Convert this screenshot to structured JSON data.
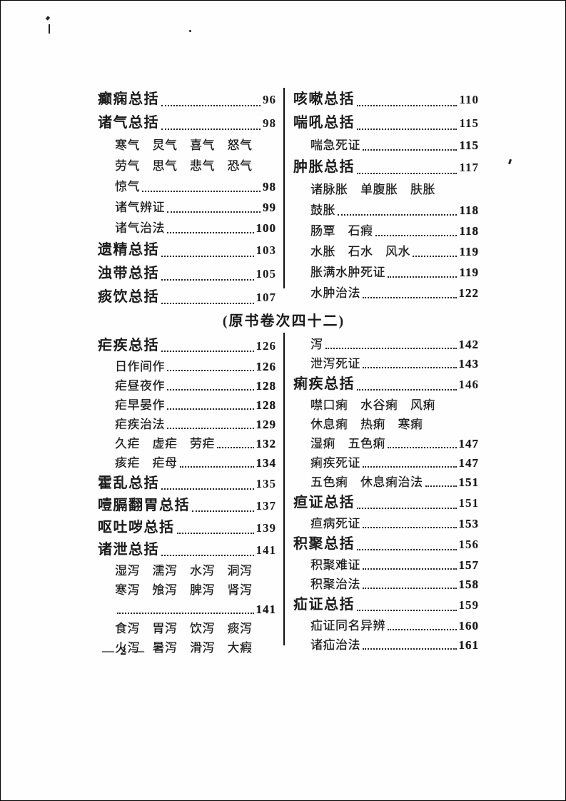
{
  "page": {
    "section_header": "(原书卷次四十二)",
    "footer": "— 2 —"
  },
  "toc": {
    "top_left": [
      {
        "label": "癫痫总括",
        "page": "96",
        "level": "main",
        "dots": true
      },
      {
        "label": "诸气总括",
        "page": "98",
        "level": "main",
        "dots": true
      },
      {
        "label": "寒气　炅气　喜气　怒气",
        "page": null,
        "level": "sub",
        "dots": false
      },
      {
        "label": "劳气　思气　悲气　恐气",
        "page": null,
        "level": "sub",
        "dots": false
      },
      {
        "label": "惊气",
        "page": "98",
        "level": "sub",
        "dots": true
      },
      {
        "label": "诸气辨证",
        "page": "99",
        "level": "sub",
        "dots": true
      },
      {
        "label": "诸气治法",
        "page": "100",
        "level": "sub",
        "dots": true
      },
      {
        "label": "遗精总括",
        "page": "103",
        "level": "main",
        "dots": true
      },
      {
        "label": "浊带总括",
        "page": "105",
        "level": "main",
        "dots": true
      },
      {
        "label": "痰饮总括",
        "page": "107",
        "level": "main",
        "dots": true
      }
    ],
    "top_right": [
      {
        "label": "咳嗽总括",
        "page": "110",
        "level": "main",
        "dots": true
      },
      {
        "label": "喘吼总括",
        "page": "115",
        "level": "main",
        "dots": true
      },
      {
        "label": "喘急死证",
        "page": "115",
        "level": "sub",
        "dots": true
      },
      {
        "label": "肿胀总括",
        "page": "117",
        "level": "main",
        "dots": true
      },
      {
        "label": "诸脉胀　单腹胀　肤胀",
        "page": null,
        "level": "sub",
        "dots": false
      },
      {
        "label": "鼓胀",
        "page": "118",
        "level": "sub",
        "dots": true
      },
      {
        "label": "肠覃　石瘕",
        "page": "118",
        "level": "sub",
        "dots": true
      },
      {
        "label": "水胀　石水　风水",
        "page": "119",
        "level": "sub",
        "dots": true
      },
      {
        "label": "胀满水肿死证",
        "page": "119",
        "level": "sub",
        "dots": true
      },
      {
        "label": "水肿治法",
        "page": "122",
        "level": "sub",
        "dots": true
      }
    ],
    "bottom_left": [
      {
        "label": "疟疾总括",
        "page": "126",
        "level": "main",
        "dots": true
      },
      {
        "label": "日作间作",
        "page": "126",
        "level": "sub",
        "dots": true
      },
      {
        "label": "疟昼夜作",
        "page": "128",
        "level": "sub",
        "dots": true
      },
      {
        "label": "疟早晏作",
        "page": "128",
        "level": "sub",
        "dots": true
      },
      {
        "label": "疟疾治法",
        "page": "129",
        "level": "sub",
        "dots": true
      },
      {
        "label": "久疟　虚疟　劳疟",
        "page": "132",
        "level": "sub",
        "dots": true
      },
      {
        "label": "痎疟　疟母",
        "page": "134",
        "level": "sub",
        "dots": true
      },
      {
        "label": "霍乱总括",
        "page": "135",
        "level": "main",
        "dots": true
      },
      {
        "label": "噎膈翻胃总括",
        "page": "137",
        "level": "main",
        "dots": true
      },
      {
        "label": "呕吐哕总括",
        "page": "139",
        "level": "main",
        "dots": true
      },
      {
        "label": "诸泄总括",
        "page": "141",
        "level": "main",
        "dots": true
      },
      {
        "label": "湿泻　濡泻　水泻　洞泻",
        "page": null,
        "level": "sub",
        "dots": false
      },
      {
        "label": "寒泻　飧泻　脾泻　肾泻",
        "page": null,
        "level": "sub",
        "dots": false
      },
      {
        "label": "",
        "page": "141",
        "level": "sub",
        "dots": true
      },
      {
        "label": "食泻　胃泻　饮泻　痰泻",
        "page": null,
        "level": "sub",
        "dots": false
      },
      {
        "label": "火泻　暑泻　滑泻　大瘕",
        "page": null,
        "level": "sub",
        "dots": false
      }
    ],
    "bottom_right": [
      {
        "label": "泻",
        "page": "142",
        "level": "sub",
        "dots": true
      },
      {
        "label": "泄泻死证",
        "page": "143",
        "level": "sub",
        "dots": true
      },
      {
        "label": "痢疾总括",
        "page": "146",
        "level": "main",
        "dots": true
      },
      {
        "label": "噤口痢　水谷痢　风痢",
        "page": null,
        "level": "sub",
        "dots": false
      },
      {
        "label": "休息痢　热痢　寒痢",
        "page": null,
        "level": "sub",
        "dots": false
      },
      {
        "label": "湿痢　五色痢",
        "page": "147",
        "level": "sub",
        "dots": true
      },
      {
        "label": "痢疾死证",
        "page": "147",
        "level": "sub",
        "dots": true
      },
      {
        "label": "五色痢　休息痢治法",
        "page": "151",
        "level": "sub",
        "dots": true
      },
      {
        "label": "疸证总括",
        "page": "151",
        "level": "main",
        "dots": true
      },
      {
        "label": "疸病死证",
        "page": "153",
        "level": "sub",
        "dots": true
      },
      {
        "label": "积聚总括",
        "page": "156",
        "level": "main",
        "dots": true
      },
      {
        "label": "积聚难证",
        "page": "157",
        "level": "sub",
        "dots": true
      },
      {
        "label": "积聚治法",
        "page": "158",
        "level": "sub",
        "dots": true
      },
      {
        "label": "疝证总括",
        "page": "159",
        "level": "main",
        "dots": true
      },
      {
        "label": "疝证同名异辨",
        "page": "160",
        "level": "sub",
        "dots": true
      },
      {
        "label": "诸疝治法",
        "page": "161",
        "level": "sub",
        "dots": true
      }
    ]
  }
}
